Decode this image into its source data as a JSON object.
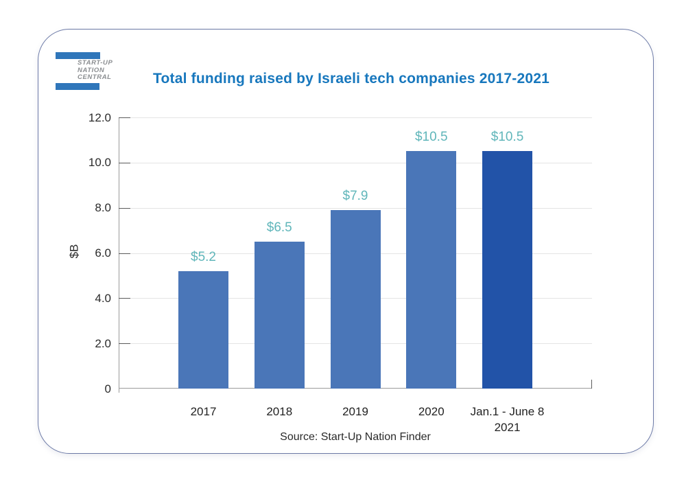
{
  "logo": {
    "line1": "START-UP",
    "line2": "NATION",
    "line3": "CENTRAL",
    "bar_color": "#2f76ba",
    "text_color": "#8a8d90"
  },
  "title": {
    "text": "Total funding raised by Israeli tech companies 2017-2021",
    "color": "#1777bd"
  },
  "chart_data": {
    "type": "bar",
    "title": "Total funding raised by Israeli tech companies 2017-2021",
    "categories": [
      "2017",
      "2018",
      "2019",
      "2020",
      "Jan.1 - June 8\n2021"
    ],
    "values": [
      5.2,
      6.5,
      7.9,
      10.5,
      10.5
    ],
    "data_labels": [
      "$5.2",
      "$6.5",
      "$7.9",
      "$10.5",
      "$10.5"
    ],
    "bar_colors": [
      "#4a76b8",
      "#4a76b8",
      "#4a76b8",
      "#4a76b8",
      "#2253a8"
    ],
    "data_label_color": "#60b6ba",
    "ylabel": "$B",
    "ylim": [
      0,
      12
    ],
    "ytick_interval": 2,
    "yticks": [
      "12.0",
      "10.0",
      "8.0",
      "6.0",
      "4.0",
      "2.0",
      "0"
    ],
    "grid": true,
    "gridline_color": "#e4e4e4",
    "axis_color": "#9b9b9b",
    "tick_color": "#5a5a5a",
    "legend": "none"
  },
  "source": {
    "text": "Source: Start-Up Nation Finder"
  }
}
